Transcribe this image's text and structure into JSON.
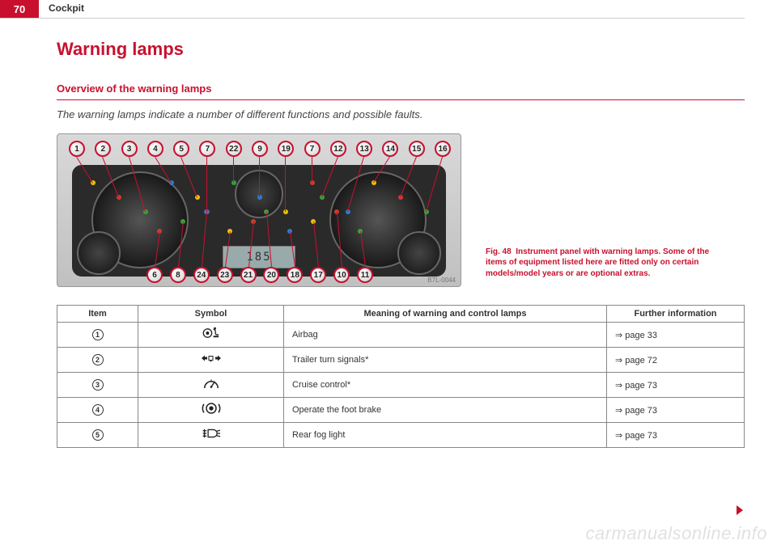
{
  "header": {
    "page_number": "70",
    "section": "Cockpit"
  },
  "title": "Warning lamps",
  "subheading": "Overview of the warning lamps",
  "subtitle": "The warning lamps indicate a number of different functions and possible faults.",
  "figure": {
    "caption_label": "Fig. 48",
    "caption_text": "Instrument panel with warning lamps. Some of the items of equipment listed here are fitted only on certain models/model years or are optional extras.",
    "image_code": "B7L-0044",
    "lcd_value": "185",
    "callouts_top": [
      "1",
      "2",
      "3",
      "4",
      "5",
      "7",
      "22",
      "9",
      "19",
      "7",
      "12",
      "13",
      "14",
      "15",
      "16"
    ],
    "callouts_bottom": [
      "6",
      "8",
      "24",
      "23",
      "21",
      "20",
      "18",
      "17",
      "10",
      "11"
    ],
    "callout_bg": "#e8e8e8",
    "callout_border": "#c8102e",
    "lead_color": "#c8102e",
    "dot_colors": [
      "#e9c400",
      "#d13a2e",
      "#3aa13a",
      "#2e7bd1"
    ]
  },
  "table": {
    "headers": {
      "item": "Item",
      "symbol": "Symbol",
      "meaning": "Meaning of warning and control lamps",
      "info": "Further information"
    },
    "rows": [
      {
        "n": "1",
        "icon": "airbag",
        "meaning": "Airbag",
        "info": "⇒ page 33"
      },
      {
        "n": "2",
        "icon": "trailer-turn",
        "meaning": "Trailer turn signals*",
        "info": "⇒ page 72"
      },
      {
        "n": "3",
        "icon": "cruise",
        "meaning": "Cruise control*",
        "info": "⇒ page 73"
      },
      {
        "n": "4",
        "icon": "footbrake",
        "meaning": "Operate the foot brake",
        "info": "⇒ page 73"
      },
      {
        "n": "5",
        "icon": "rear-fog",
        "meaning": "Rear fog light",
        "info": "⇒ page 73"
      }
    ]
  },
  "colors": {
    "brand_red": "#c8102e",
    "text": "#333333",
    "border": "#888888",
    "panel_dark": "#2a2a2a"
  },
  "watermark": "carmanualsonline.info"
}
